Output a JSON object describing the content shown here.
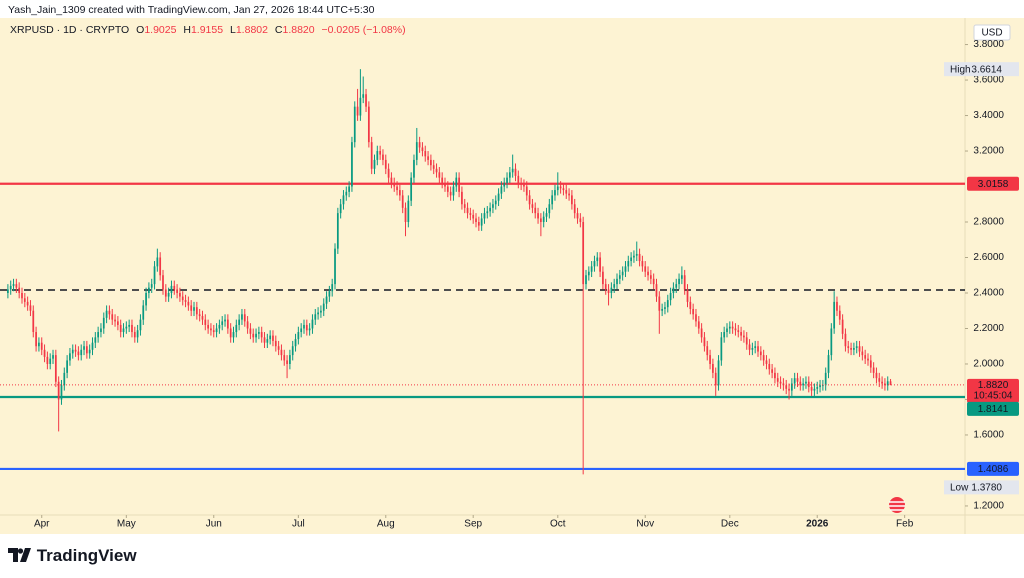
{
  "header": {
    "creator": "Yash_Jain_1309 created with TradingView.com, Jan 27, 2026 18:44 UTC+5:30",
    "symbol": "XRPUSD · 1D · CRYPTO",
    "ohlc": [
      {
        "label": "O",
        "value": "1.9025"
      },
      {
        "label": "H",
        "value": "1.9155"
      },
      {
        "label": "L",
        "value": "1.8802"
      },
      {
        "label": "C",
        "value": "1.8820"
      }
    ],
    "change": "−0.0205 (−1.08%)"
  },
  "chart_data": {
    "type": "candlestick",
    "up_color": "#089981",
    "down_color": "#f23645",
    "grid": false,
    "currency": "USD",
    "open": [
      2.4,
      2.42,
      2.44,
      2.45,
      2.43,
      2.4,
      2.37,
      2.35,
      2.33,
      2.3,
      2.18,
      2.1,
      2.12,
      2.08,
      2.04,
      2.0,
      2.03,
      2.05,
      1.9,
      1.8,
      1.88,
      1.95,
      2.02,
      2.06,
      2.08,
      2.07,
      2.05,
      2.08,
      2.1,
      2.06,
      2.08,
      2.12,
      2.15,
      2.18,
      2.2,
      2.26,
      2.3,
      2.28,
      2.25,
      2.24,
      2.22,
      2.18,
      2.2,
      2.21,
      2.22,
      2.18,
      2.15,
      2.19,
      2.25,
      2.33,
      2.4,
      2.43,
      2.45,
      2.55,
      2.6,
      2.5,
      2.42,
      2.38,
      2.4,
      2.44,
      2.42,
      2.4,
      2.38,
      2.36,
      2.35,
      2.33,
      2.3,
      2.32,
      2.28,
      2.27,
      2.25,
      2.22,
      2.2,
      2.19,
      2.18,
      2.2,
      2.22,
      2.24,
      2.25,
      2.2,
      2.15,
      2.18,
      2.22,
      2.25,
      2.28,
      2.24,
      2.2,
      2.17,
      2.15,
      2.17,
      2.18,
      2.15,
      2.12,
      2.14,
      2.16,
      2.13,
      2.1,
      2.08,
      2.05,
      2.02,
      2.0,
      2.05,
      2.1,
      2.14,
      2.18,
      2.2,
      2.22,
      2.19,
      2.2,
      2.25,
      2.28,
      2.29,
      2.3,
      2.34,
      2.38,
      2.41,
      2.45,
      2.65,
      2.85,
      2.9,
      2.95,
      2.97,
      3.0,
      3.25,
      3.45,
      3.4,
      3.5,
      3.52,
      3.45,
      3.25,
      3.1,
      3.15,
      3.2,
      3.18,
      3.15,
      3.1,
      3.05,
      3.02,
      3.0,
      2.98,
      2.95,
      2.88,
      2.8,
      2.92,
      3.05,
      3.15,
      3.25,
      3.22,
      3.2,
      3.17,
      3.15,
      3.12,
      3.1,
      3.08,
      3.05,
      3.02,
      3.0,
      2.97,
      2.95,
      3.0,
      3.05,
      2.97,
      2.9,
      2.88,
      2.85,
      2.84,
      2.82,
      2.8,
      2.78,
      2.82,
      2.85,
      2.86,
      2.88,
      2.9,
      2.92,
      2.96,
      3.0,
      3.02,
      3.05,
      3.08,
      3.1,
      3.06,
      3.02,
      3.01,
      3.0,
      2.95,
      2.9,
      2.88,
      2.85,
      2.82,
      2.8,
      2.83,
      2.85,
      2.9,
      2.95,
      2.98,
      3.0,
      2.99,
      2.98,
      2.96,
      2.95,
      2.9,
      2.85,
      2.82,
      2.8,
      2.45,
      2.5,
      2.52,
      2.55,
      2.58,
      2.6,
      2.52,
      2.45,
      2.42,
      2.4,
      2.43,
      2.45,
      2.48,
      2.5,
      2.52,
      2.55,
      2.58,
      2.6,
      2.61,
      2.62,
      2.58,
      2.55,
      2.52,
      2.5,
      2.48,
      2.45,
      2.38,
      2.3,
      2.31,
      2.32,
      2.36,
      2.4,
      2.43,
      2.45,
      2.48,
      2.5,
      2.42,
      2.35,
      2.31,
      2.28,
      2.24,
      2.2,
      2.15,
      2.1,
      2.05,
      2.0,
      1.95,
      1.88,
      2.02,
      2.15,
      2.18,
      2.2,
      2.21,
      2.2,
      2.19,
      2.18,
      2.16,
      2.15,
      2.11,
      2.08,
      2.09,
      2.1,
      2.07,
      2.05,
      2.02,
      2.0,
      1.97,
      1.95,
      1.92,
      1.9,
      1.89,
      1.88,
      1.86,
      1.85,
      1.89,
      1.92,
      1.9,
      1.88,
      1.89,
      1.9,
      1.87,
      1.85,
      1.86,
      1.87,
      1.88,
      1.88,
      1.95,
      2.05,
      2.2,
      2.35,
      2.3,
      2.25,
      2.17,
      2.1,
      2.09,
      2.08,
      2.09,
      2.1,
      2.07,
      2.05,
      2.03,
      2.02,
      1.98,
      1.95,
      1.92,
      1.9,
      1.89,
      1.88,
      1.9025
    ],
    "high": [
      2.45,
      2.47,
      2.48,
      2.48,
      2.46,
      2.43,
      2.4,
      2.38,
      2.36,
      2.33,
      2.21,
      2.15,
      2.15,
      2.11,
      2.07,
      2.06,
      2.08,
      2.08,
      1.93,
      1.91,
      1.98,
      2.05,
      2.09,
      2.11,
      2.11,
      2.1,
      2.11,
      2.13,
      2.13,
      2.11,
      2.15,
      2.18,
      2.21,
      2.23,
      2.29,
      2.33,
      2.33,
      2.31,
      2.28,
      2.27,
      2.25,
      2.23,
      2.24,
      2.25,
      2.25,
      2.21,
      2.22,
      2.28,
      2.36,
      2.43,
      2.46,
      2.48,
      2.58,
      2.65,
      2.63,
      2.53,
      2.45,
      2.43,
      2.47,
      2.47,
      2.45,
      2.43,
      2.41,
      2.39,
      2.38,
      2.36,
      2.35,
      2.35,
      2.31,
      2.3,
      2.28,
      2.25,
      2.23,
      2.22,
      2.23,
      2.25,
      2.27,
      2.28,
      2.28,
      2.23,
      2.21,
      2.25,
      2.28,
      2.31,
      2.31,
      2.27,
      2.23,
      2.2,
      2.2,
      2.21,
      2.21,
      2.18,
      2.17,
      2.19,
      2.19,
      2.16,
      2.13,
      2.11,
      2.08,
      2.05,
      2.08,
      2.13,
      2.17,
      2.21,
      2.23,
      2.25,
      2.25,
      2.23,
      2.28,
      2.31,
      2.32,
      2.33,
      2.37,
      2.41,
      2.44,
      2.48,
      2.68,
      2.88,
      2.93,
      2.98,
      3.0,
      3.03,
      3.28,
      3.48,
      3.55,
      3.6614,
      3.62,
      3.55,
      3.48,
      3.28,
      3.18,
      3.23,
      3.23,
      3.21,
      3.18,
      3.13,
      3.08,
      3.05,
      3.03,
      3.01,
      2.98,
      2.91,
      2.95,
      3.08,
      3.18,
      3.33,
      3.28,
      3.25,
      3.23,
      3.2,
      3.18,
      3.15,
      3.13,
      3.11,
      3.08,
      3.05,
      3.03,
      3.0,
      3.03,
      3.08,
      3.08,
      3.0,
      2.93,
      2.91,
      2.88,
      2.87,
      2.85,
      2.83,
      2.85,
      2.88,
      2.89,
      2.91,
      2.93,
      2.95,
      2.99,
      3.03,
      3.05,
      3.08,
      3.11,
      3.18,
      3.13,
      3.09,
      3.05,
      3.04,
      3.03,
      2.98,
      2.93,
      2.91,
      2.88,
      2.85,
      2.86,
      2.88,
      2.93,
      2.98,
      3.01,
      3.08,
      3.03,
      3.02,
      3.01,
      2.99,
      2.98,
      2.93,
      2.88,
      2.85,
      2.83,
      2.53,
      2.55,
      2.58,
      2.61,
      2.63,
      2.63,
      2.55,
      2.48,
      2.45,
      2.46,
      2.48,
      2.51,
      2.53,
      2.55,
      2.58,
      2.61,
      2.63,
      2.64,
      2.69,
      2.65,
      2.61,
      2.58,
      2.55,
      2.53,
      2.51,
      2.48,
      2.41,
      2.34,
      2.35,
      2.39,
      2.43,
      2.46,
      2.48,
      2.51,
      2.55,
      2.53,
      2.45,
      2.38,
      2.34,
      2.31,
      2.27,
      2.23,
      2.18,
      2.13,
      2.08,
      2.03,
      1.98,
      2.05,
      2.18,
      2.21,
      2.23,
      2.24,
      2.24,
      2.23,
      2.22,
      2.21,
      2.19,
      2.18,
      2.14,
      2.12,
      2.13,
      2.13,
      2.1,
      2.08,
      2.05,
      2.03,
      2.0,
      1.98,
      1.95,
      1.93,
      1.92,
      1.91,
      1.89,
      1.92,
      1.95,
      1.95,
      1.93,
      1.92,
      1.93,
      1.93,
      1.9,
      1.89,
      1.9,
      1.91,
      1.91,
      1.98,
      2.08,
      2.23,
      2.41,
      2.38,
      2.33,
      2.28,
      2.2,
      2.13,
      2.12,
      2.12,
      2.13,
      2.13,
      2.1,
      2.08,
      2.06,
      2.05,
      2.01,
      1.98,
      1.95,
      1.93,
      1.92,
      1.93,
      1.9155
    ],
    "low": [
      2.37,
      2.39,
      2.41,
      2.4,
      2.37,
      2.34,
      2.32,
      2.3,
      2.27,
      2.15,
      2.07,
      2.07,
      2.05,
      2.01,
      1.97,
      1.97,
      2.0,
      1.87,
      1.62,
      1.77,
      1.85,
      1.92,
      1.99,
      2.03,
      2.04,
      2.02,
      2.02,
      2.05,
      2.03,
      2.03,
      2.05,
      2.09,
      2.12,
      2.15,
      2.17,
      2.23,
      2.25,
      2.22,
      2.21,
      2.19,
      2.15,
      2.15,
      2.17,
      2.18,
      2.15,
      2.12,
      2.12,
      2.16,
      2.22,
      2.3,
      2.37,
      2.4,
      2.42,
      2.52,
      2.47,
      2.39,
      2.35,
      2.35,
      2.37,
      2.39,
      2.37,
      2.35,
      2.33,
      2.32,
      2.3,
      2.27,
      2.27,
      2.25,
      2.24,
      2.22,
      2.19,
      2.17,
      2.16,
      2.15,
      2.15,
      2.17,
      2.19,
      2.21,
      2.17,
      2.12,
      2.12,
      2.15,
      2.19,
      2.22,
      2.21,
      2.17,
      2.14,
      2.12,
      2.12,
      2.14,
      2.12,
      2.09,
      2.09,
      2.11,
      2.1,
      2.07,
      2.05,
      2.02,
      1.99,
      1.92,
      1.97,
      2.02,
      2.07,
      2.11,
      2.15,
      2.17,
      2.16,
      2.16,
      2.17,
      2.22,
      2.25,
      2.26,
      2.27,
      2.31,
      2.35,
      2.38,
      2.42,
      2.62,
      2.82,
      2.87,
      2.92,
      2.94,
      2.97,
      3.22,
      3.37,
      3.37,
      3.47,
      3.42,
      3.22,
      3.07,
      3.07,
      3.12,
      3.15,
      3.12,
      3.07,
      3.02,
      2.99,
      2.97,
      2.95,
      2.92,
      2.85,
      2.72,
      2.77,
      2.89,
      3.02,
      3.12,
      3.19,
      3.17,
      3.14,
      3.12,
      3.09,
      3.07,
      3.05,
      3.02,
      2.99,
      2.97,
      2.94,
      2.92,
      2.92,
      2.97,
      2.94,
      2.87,
      2.85,
      2.82,
      2.81,
      2.79,
      2.77,
      2.75,
      2.75,
      2.79,
      2.82,
      2.83,
      2.85,
      2.87,
      2.89,
      2.93,
      2.97,
      2.99,
      3.02,
      3.05,
      3.03,
      2.99,
      2.98,
      2.97,
      2.92,
      2.87,
      2.85,
      2.82,
      2.79,
      2.72,
      2.77,
      2.8,
      2.82,
      2.87,
      2.92,
      2.95,
      2.96,
      2.95,
      2.93,
      2.92,
      2.87,
      2.82,
      2.79,
      2.77,
      1.378,
      2.42,
      2.47,
      2.49,
      2.52,
      2.55,
      2.49,
      2.42,
      2.39,
      2.33,
      2.37,
      2.4,
      2.42,
      2.45,
      2.47,
      2.49,
      2.52,
      2.55,
      2.57,
      2.58,
      2.55,
      2.52,
      2.49,
      2.47,
      2.45,
      2.42,
      2.35,
      2.17,
      2.27,
      2.28,
      2.29,
      2.33,
      2.37,
      2.4,
      2.42,
      2.45,
      2.39,
      2.32,
      2.28,
      2.25,
      2.21,
      2.17,
      2.12,
      2.07,
      2.02,
      1.97,
      1.92,
      1.82,
      1.85,
      1.99,
      2.12,
      2.15,
      2.17,
      2.17,
      2.16,
      2.15,
      2.13,
      2.12,
      2.08,
      2.05,
      2.05,
      2.06,
      2.04,
      2.02,
      1.99,
      1.97,
      1.94,
      1.92,
      1.89,
      1.87,
      1.86,
      1.85,
      1.83,
      1.8,
      1.82,
      1.86,
      1.87,
      1.85,
      1.85,
      1.86,
      1.84,
      1.82,
      1.82,
      1.83,
      1.84,
      1.85,
      1.85,
      1.92,
      2.02,
      2.17,
      2.27,
      2.22,
      2.14,
      2.07,
      2.06,
      2.05,
      2.05,
      2.06,
      2.04,
      2.02,
      2.0,
      1.99,
      1.95,
      1.92,
      1.89,
      1.87,
      1.86,
      1.85,
      1.85,
      1.8802
    ],
    "close": [
      2.42,
      2.44,
      2.45,
      2.43,
      2.4,
      2.37,
      2.35,
      2.33,
      2.3,
      2.18,
      2.1,
      2.12,
      2.08,
      2.04,
      2.0,
      2.03,
      2.05,
      1.9,
      1.8,
      1.88,
      1.95,
      2.02,
      2.06,
      2.08,
      2.07,
      2.05,
      2.08,
      2.1,
      2.06,
      2.08,
      2.12,
      2.15,
      2.18,
      2.2,
      2.26,
      2.3,
      2.28,
      2.25,
      2.24,
      2.22,
      2.18,
      2.2,
      2.21,
      2.22,
      2.18,
      2.15,
      2.19,
      2.25,
      2.33,
      2.4,
      2.43,
      2.45,
      2.55,
      2.6,
      2.5,
      2.42,
      2.38,
      2.4,
      2.44,
      2.42,
      2.4,
      2.38,
      2.36,
      2.35,
      2.33,
      2.3,
      2.32,
      2.28,
      2.27,
      2.25,
      2.22,
      2.2,
      2.19,
      2.18,
      2.2,
      2.22,
      2.24,
      2.25,
      2.2,
      2.15,
      2.18,
      2.22,
      2.25,
      2.28,
      2.24,
      2.2,
      2.17,
      2.15,
      2.17,
      2.18,
      2.15,
      2.12,
      2.14,
      2.16,
      2.13,
      2.1,
      2.08,
      2.05,
      2.02,
      2.0,
      2.05,
      2.1,
      2.14,
      2.18,
      2.2,
      2.22,
      2.19,
      2.2,
      2.25,
      2.28,
      2.29,
      2.3,
      2.34,
      2.38,
      2.41,
      2.45,
      2.65,
      2.85,
      2.9,
      2.95,
      2.97,
      3.0,
      3.25,
      3.45,
      3.4,
      3.5,
      3.52,
      3.45,
      3.25,
      3.1,
      3.15,
      3.2,
      3.18,
      3.15,
      3.1,
      3.05,
      3.02,
      3.0,
      2.98,
      2.95,
      2.88,
      2.8,
      2.92,
      3.05,
      3.15,
      3.25,
      3.22,
      3.2,
      3.17,
      3.15,
      3.12,
      3.1,
      3.08,
      3.05,
      3.02,
      3.0,
      2.97,
      2.95,
      3.0,
      3.05,
      2.97,
      2.9,
      2.88,
      2.85,
      2.84,
      2.82,
      2.8,
      2.78,
      2.82,
      2.85,
      2.86,
      2.88,
      2.9,
      2.92,
      2.96,
      3.0,
      3.02,
      3.05,
      3.08,
      3.1,
      3.06,
      3.02,
      3.01,
      3.0,
      2.95,
      2.9,
      2.88,
      2.85,
      2.82,
      2.8,
      2.83,
      2.85,
      2.9,
      2.95,
      2.98,
      3.0,
      2.99,
      2.98,
      2.96,
      2.95,
      2.9,
      2.85,
      2.82,
      2.8,
      2.45,
      2.5,
      2.52,
      2.55,
      2.58,
      2.6,
      2.52,
      2.45,
      2.42,
      2.4,
      2.43,
      2.45,
      2.48,
      2.5,
      2.52,
      2.55,
      2.58,
      2.6,
      2.61,
      2.62,
      2.58,
      2.55,
      2.52,
      2.5,
      2.48,
      2.45,
      2.38,
      2.3,
      2.31,
      2.32,
      2.36,
      2.4,
      2.43,
      2.45,
      2.48,
      2.5,
      2.42,
      2.35,
      2.31,
      2.28,
      2.24,
      2.2,
      2.15,
      2.1,
      2.05,
      2.0,
      1.95,
      1.88,
      2.02,
      2.15,
      2.18,
      2.2,
      2.21,
      2.2,
      2.19,
      2.18,
      2.16,
      2.15,
      2.11,
      2.08,
      2.09,
      2.1,
      2.07,
      2.05,
      2.02,
      2.0,
      1.97,
      1.95,
      1.92,
      1.9,
      1.89,
      1.88,
      1.86,
      1.85,
      1.89,
      1.92,
      1.9,
      1.88,
      1.89,
      1.9,
      1.87,
      1.85,
      1.86,
      1.87,
      1.88,
      1.88,
      1.95,
      2.05,
      2.2,
      2.35,
      2.3,
      2.25,
      2.17,
      2.1,
      2.09,
      2.08,
      2.09,
      2.1,
      2.07,
      2.05,
      2.03,
      2.02,
      1.98,
      1.95,
      1.92,
      1.9,
      1.89,
      1.88,
      1.9025,
      1.882
    ],
    "xlim": [
      -2.8,
      339.4
    ],
    "xticks": [
      {
        "value": 12,
        "label": "Apr"
      },
      {
        "value": 42,
        "label": "May"
      },
      {
        "value": 73,
        "label": "Jun"
      },
      {
        "value": 103,
        "label": "Jul"
      },
      {
        "value": 134,
        "label": "Aug"
      },
      {
        "value": 165,
        "label": "Sep"
      },
      {
        "value": 195,
        "label": "Oct"
      },
      {
        "value": 226,
        "label": "Nov"
      },
      {
        "value": 256,
        "label": "Dec"
      },
      {
        "value": 287,
        "label": "2026"
      },
      {
        "value": 318,
        "label": "Feb"
      }
    ],
    "ylim": [
      1.149,
      3.882
    ],
    "yticks": [
      {
        "value": 1.2,
        "label": "1.2000"
      },
      {
        "value": 1.6,
        "label": "1.6000"
      },
      {
        "value": 1.8,
        "label": "1.8000"
      },
      {
        "value": 2,
        "label": "2.0000"
      },
      {
        "value": 2.2,
        "label": "2.2000"
      },
      {
        "value": 2.4,
        "label": "2.4000"
      },
      {
        "value": 2.6,
        "label": "2.6000"
      },
      {
        "value": 2.8,
        "label": "2.8000"
      },
      {
        "value": 3.2,
        "label": "3.2000"
      },
      {
        "value": 3.4,
        "label": "3.4000"
      },
      {
        "value": 3.6,
        "label": "3.6000"
      },
      {
        "value": 3.8,
        "label": "3.8000"
      }
    ],
    "levels": [
      {
        "value": 3.0158,
        "color": "#f23645",
        "style": "solid"
      },
      {
        "value": 2.417,
        "color": "#131722",
        "style": "dashed"
      },
      {
        "value": 1.8141,
        "color": "#089981",
        "style": "solid"
      },
      {
        "value": 1.4086,
        "color": "#2962ff",
        "style": "solid"
      }
    ],
    "last_price": {
      "countdown": "10:45:04",
      "color": "#f23645"
    },
    "high_marker": {
      "label": "High"
    },
    "low_marker": {
      "label": "Low",
      "value": "1.3780"
    }
  },
  "footer": {
    "logo": "TradingView"
  }
}
